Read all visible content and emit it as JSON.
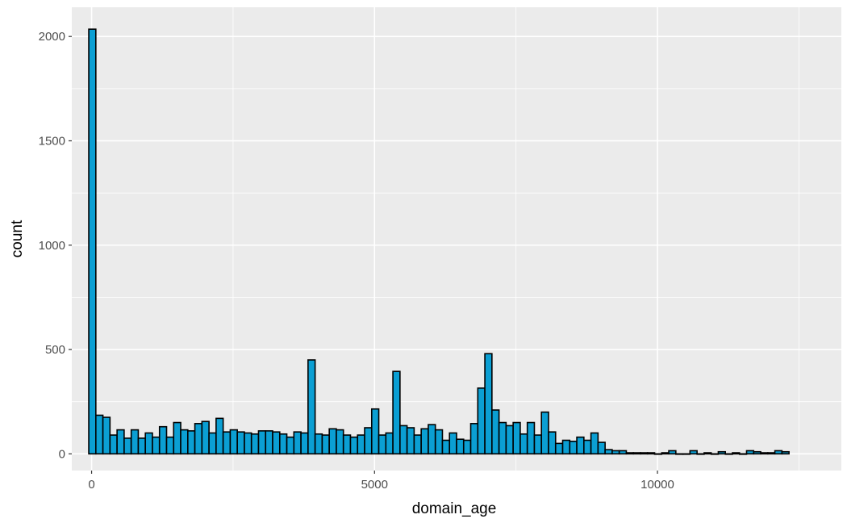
{
  "chart_data": {
    "type": "bar",
    "subtype": "histogram",
    "xlabel": "domain_age",
    "ylabel": "count",
    "xlim": [
      -350,
      13250
    ],
    "ylim": [
      -80,
      2140
    ],
    "x_ticks": [
      0,
      5000,
      10000
    ],
    "x_tick_labels": [
      "0",
      "5000",
      "10000"
    ],
    "y_ticks": [
      0,
      500,
      1000,
      1500,
      2000
    ],
    "y_tick_labels": [
      "0",
      "500",
      "1000",
      "1500",
      "2000"
    ],
    "grid": true,
    "legend": "none",
    "bin_start": -50,
    "bin_width": 125,
    "values": [
      2035,
      185,
      175,
      90,
      115,
      75,
      115,
      75,
      100,
      80,
      130,
      80,
      150,
      115,
      110,
      145,
      155,
      100,
      170,
      105,
      115,
      105,
      100,
      95,
      110,
      110,
      105,
      95,
      80,
      105,
      100,
      450,
      95,
      90,
      120,
      115,
      90,
      80,
      90,
      125,
      215,
      90,
      100,
      395,
      135,
      125,
      90,
      120,
      140,
      115,
      65,
      100,
      70,
      65,
      145,
      315,
      480,
      210,
      150,
      135,
      150,
      95,
      150,
      90,
      200,
      105,
      50,
      65,
      60,
      80,
      65,
      100,
      55,
      20,
      15,
      15,
      5,
      5,
      5,
      5,
      0,
      5,
      15,
      0,
      0,
      15,
      0,
      5,
      0,
      10,
      0,
      5,
      0,
      15,
      10,
      5,
      5,
      15,
      10
    ],
    "colors": {
      "bar_fill": "#0b9fd3",
      "bar_outline": "#000000",
      "panel": "#ebebeb",
      "grid": "#ffffff",
      "tick_label": "#4d4d4d"
    }
  }
}
